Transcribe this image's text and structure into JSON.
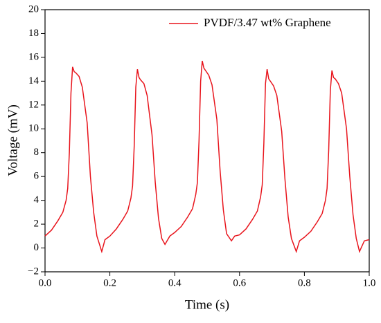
{
  "chart_data": {
    "type": "line",
    "xlabel": "Time (s)",
    "ylabel": "Voltage (mV)",
    "xlim": [
      0,
      1
    ],
    "ylim": [
      -2,
      20
    ],
    "xticks": [
      {
        "value": 0,
        "label": "0.0"
      },
      0.2,
      0.4,
      0.6,
      0.8,
      {
        "value": 1,
        "label": "1.0"
      }
    ],
    "yticks": [
      {
        "value": -2,
        "label": "−2"
      },
      0,
      2,
      4,
      6,
      8,
      10,
      12,
      14,
      16,
      18,
      20
    ],
    "legend": "upper right",
    "series": [
      {
        "name": "PVDF/3.47 wt% Graphene",
        "color": "#e8141c",
        "x": [
          0,
          0.02,
          0.04,
          0.055,
          0.065,
          0.07,
          0.075,
          0.08,
          0.085,
          0.09,
          0.095,
          0.105,
          0.115,
          0.13,
          0.14,
          0.15,
          0.16,
          0.175,
          0.185,
          0.2,
          0.22,
          0.24,
          0.255,
          0.265,
          0.27,
          0.275,
          0.28,
          0.285,
          0.29,
          0.295,
          0.305,
          0.315,
          0.33,
          0.34,
          0.35,
          0.36,
          0.37,
          0.385,
          0.4,
          0.42,
          0.44,
          0.455,
          0.465,
          0.47,
          0.475,
          0.48,
          0.485,
          0.49,
          0.495,
          0.505,
          0.515,
          0.53,
          0.54,
          0.55,
          0.56,
          0.575,
          0.585,
          0.6,
          0.62,
          0.64,
          0.655,
          0.665,
          0.67,
          0.675,
          0.68,
          0.685,
          0.69,
          0.695,
          0.705,
          0.715,
          0.73,
          0.74,
          0.75,
          0.76,
          0.775,
          0.785,
          0.8,
          0.82,
          0.84,
          0.855,
          0.865,
          0.87,
          0.875,
          0.88,
          0.885,
          0.89,
          0.895,
          0.905,
          0.915,
          0.93,
          0.94,
          0.95,
          0.96,
          0.97,
          0.985,
          1.0
        ],
        "values": [
          1.0,
          1.5,
          2.3,
          3.0,
          4.0,
          5.0,
          8.0,
          13.0,
          15.2,
          14.8,
          14.7,
          14.4,
          13.5,
          10.5,
          6.0,
          3.0,
          1.0,
          -0.3,
          0.7,
          1.0,
          1.6,
          2.4,
          3.1,
          4.2,
          5.2,
          8.5,
          13.5,
          15.0,
          14.3,
          14.1,
          13.8,
          12.8,
          9.5,
          5.5,
          2.5,
          0.8,
          0.3,
          1.0,
          1.3,
          1.8,
          2.6,
          3.3,
          4.5,
          5.5,
          9.0,
          14.0,
          15.7,
          15.1,
          14.9,
          14.5,
          13.7,
          10.8,
          6.5,
          3.2,
          1.2,
          0.6,
          1.0,
          1.1,
          1.6,
          2.4,
          3.1,
          4.3,
          5.3,
          8.8,
          13.8,
          15.0,
          14.2,
          14.0,
          13.6,
          12.8,
          9.8,
          5.8,
          2.6,
          0.8,
          -0.3,
          0.6,
          0.9,
          1.4,
          2.2,
          2.9,
          4.0,
          5.0,
          8.2,
          13.2,
          14.9,
          14.3,
          14.2,
          13.8,
          13.0,
          10.0,
          6.0,
          2.8,
          0.8,
          -0.3,
          0.6,
          0.7
        ]
      }
    ]
  }
}
